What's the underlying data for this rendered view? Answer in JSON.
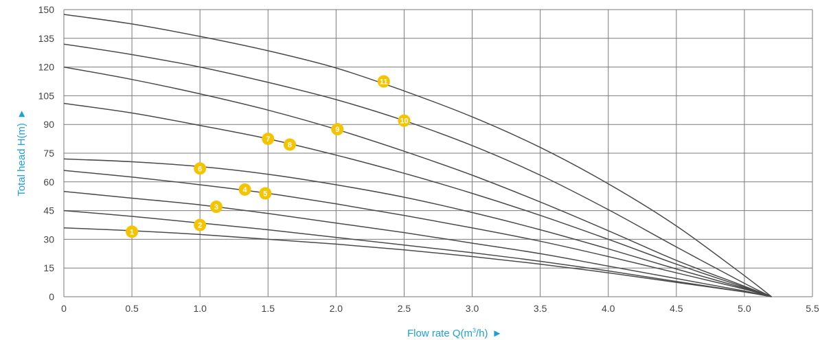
{
  "chart_data": {
    "type": "line",
    "xlabel_prefix": "Flow rate Q(m",
    "xlabel_sup": "3",
    "xlabel_suffix": "/h)",
    "ylabel": "Total head H(m)",
    "arrow_glyph": "►",
    "xlim": [
      0,
      5.5
    ],
    "ylim": [
      0,
      150
    ],
    "xticks": [
      0,
      0.5,
      1.0,
      1.5,
      2.0,
      2.5,
      3.0,
      3.5,
      4.0,
      4.5,
      5.0,
      5.5
    ],
    "xtick_labels": [
      "0",
      "0.5",
      "1.0",
      "1.5",
      "2.0",
      "2.5",
      "3.0",
      "3.5",
      "4.0",
      "4.5",
      "5.0",
      "5.5"
    ],
    "yticks": [
      0,
      15,
      30,
      45,
      60,
      75,
      90,
      105,
      120,
      135,
      150
    ],
    "ytick_labels": [
      "0",
      "15",
      "30",
      "45",
      "60",
      "75",
      "90",
      "105",
      "120",
      "135",
      "150"
    ],
    "grid": true,
    "shutoff_flow": 5.2,
    "series": [
      {
        "marker": "1",
        "marker_x": 0.5,
        "marker_y": 34,
        "points": [
          [
            0,
            36
          ],
          [
            0.5,
            34.5
          ],
          [
            1.0,
            32.5
          ],
          [
            1.5,
            30
          ],
          [
            2.0,
            27.5
          ],
          [
            2.5,
            24.5
          ],
          [
            3.0,
            21
          ],
          [
            3.5,
            17
          ],
          [
            4.0,
            12.5
          ],
          [
            4.5,
            7.5
          ],
          [
            5.0,
            2.5
          ],
          [
            5.2,
            0
          ]
        ]
      },
      {
        "marker": "2",
        "marker_x": 1.0,
        "marker_y": 37.5,
        "points": [
          [
            0,
            45
          ],
          [
            0.5,
            42
          ],
          [
            1.0,
            38.5
          ],
          [
            1.5,
            35
          ],
          [
            2.0,
            31
          ],
          [
            2.5,
            27
          ],
          [
            3.0,
            23
          ],
          [
            3.5,
            18.5
          ],
          [
            4.0,
            13.5
          ],
          [
            4.5,
            8
          ],
          [
            5.0,
            2.5
          ],
          [
            5.2,
            0
          ]
        ]
      },
      {
        "marker": "3",
        "marker_x": 1.12,
        "marker_y": 47,
        "points": [
          [
            0,
            55
          ],
          [
            0.5,
            51.5
          ],
          [
            1.0,
            48
          ],
          [
            1.5,
            43.5
          ],
          [
            2.0,
            38.5
          ],
          [
            2.5,
            33.5
          ],
          [
            3.0,
            28
          ],
          [
            3.5,
            22.5
          ],
          [
            4.0,
            16
          ],
          [
            4.5,
            9.5
          ],
          [
            5.0,
            3
          ],
          [
            5.2,
            0
          ]
        ]
      },
      {
        "marker": "4",
        "marker_x": 1.33,
        "marker_y": 56,
        "points": [
          [
            0,
            66
          ],
          [
            0.5,
            62.5
          ],
          [
            1.0,
            58.5
          ],
          [
            1.5,
            54
          ],
          [
            2.0,
            48.5
          ],
          [
            2.5,
            42.5
          ],
          [
            3.0,
            36
          ],
          [
            3.5,
            29
          ],
          [
            4.0,
            21
          ],
          [
            4.5,
            12.5
          ],
          [
            5.0,
            4
          ],
          [
            5.2,
            0
          ]
        ]
      },
      {
        "marker": "5",
        "marker_x": 1.48,
        "marker_y": 54,
        "points": null
      },
      {
        "marker": "6",
        "marker_x": 1.0,
        "marker_y": 67,
        "points": [
          [
            0,
            72
          ],
          [
            0.5,
            70.5
          ],
          [
            1.0,
            68
          ],
          [
            1.5,
            64
          ],
          [
            2.0,
            58.5
          ],
          [
            2.5,
            52
          ],
          [
            3.0,
            44
          ],
          [
            3.5,
            35
          ],
          [
            4.0,
            25
          ],
          [
            4.5,
            14.5
          ],
          [
            5.0,
            4.5
          ],
          [
            5.2,
            0
          ]
        ]
      },
      {
        "marker": "7",
        "marker_x": 1.5,
        "marker_y": 82.5,
        "points": [
          [
            0,
            101
          ],
          [
            0.5,
            96
          ],
          [
            1.0,
            89.5
          ],
          [
            1.5,
            82.5
          ],
          [
            2.0,
            74
          ],
          [
            2.5,
            64.5
          ],
          [
            3.0,
            54
          ],
          [
            3.5,
            42.5
          ],
          [
            4.0,
            30
          ],
          [
            4.5,
            17
          ],
          [
            5.0,
            5
          ],
          [
            5.2,
            0
          ]
        ]
      },
      {
        "marker": "8",
        "marker_x": 1.66,
        "marker_y": 79.5,
        "points": null
      },
      {
        "marker": "9",
        "marker_x": 2.01,
        "marker_y": 87.5,
        "points": [
          [
            0,
            120
          ],
          [
            0.5,
            113.5
          ],
          [
            1.0,
            106
          ],
          [
            1.5,
            97.5
          ],
          [
            2.0,
            87.5
          ],
          [
            2.5,
            76
          ],
          [
            3.0,
            63.5
          ],
          [
            3.5,
            49.5
          ],
          [
            4.0,
            34.5
          ],
          [
            4.5,
            19
          ],
          [
            5.0,
            5.5
          ],
          [
            5.2,
            0
          ]
        ]
      },
      {
        "marker": "10",
        "marker_x": 2.5,
        "marker_y": 92,
        "points": [
          [
            0,
            132
          ],
          [
            0.5,
            126.5
          ],
          [
            1.0,
            120
          ],
          [
            1.5,
            112
          ],
          [
            2.0,
            103
          ],
          [
            2.5,
            92
          ],
          [
            3.0,
            79
          ],
          [
            3.5,
            63.5
          ],
          [
            4.0,
            45.5
          ],
          [
            4.5,
            26
          ],
          [
            5.0,
            7
          ],
          [
            5.2,
            0
          ]
        ]
      },
      {
        "marker": "11",
        "marker_x": 2.35,
        "marker_y": 112.5,
        "points": [
          [
            0,
            147.5
          ],
          [
            0.5,
            142.5
          ],
          [
            1.0,
            136
          ],
          [
            1.5,
            128.5
          ],
          [
            2.0,
            119.5
          ],
          [
            2.5,
            107.5
          ],
          [
            3.0,
            94
          ],
          [
            3.5,
            78
          ],
          [
            4.0,
            59
          ],
          [
            4.5,
            37
          ],
          [
            5.0,
            11
          ],
          [
            5.2,
            0
          ]
        ]
      }
    ],
    "colors": {
      "curve": "#4a4a4a",
      "grid": "#7a7a7a",
      "marker_fill": "#f5c400",
      "marker_text": "#ffffff",
      "axis_title": "#1ea0d7"
    }
  }
}
